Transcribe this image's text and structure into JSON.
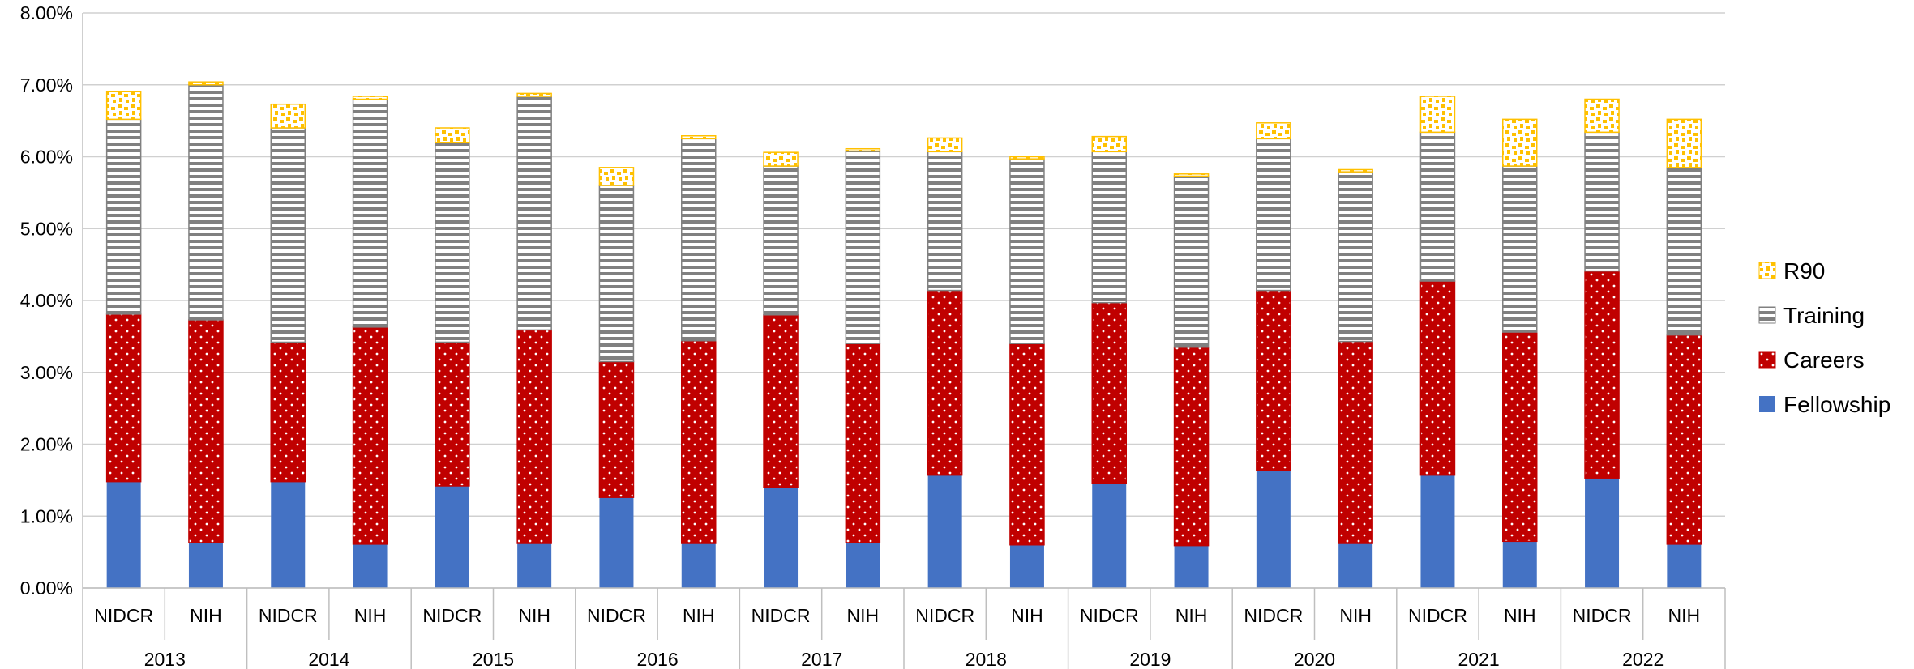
{
  "chart_data": {
    "type": "bar",
    "stacked": true,
    "title": "",
    "xlabel": "",
    "ylabel": "",
    "ylim": [
      0,
      8
    ],
    "y_ticks": [
      "0.00%",
      "1.00%",
      "2.00%",
      "3.00%",
      "4.00%",
      "5.00%",
      "6.00%",
      "7.00%",
      "8.00%"
    ],
    "grid": true,
    "legend_position": "right",
    "years": [
      "2013",
      "2014",
      "2015",
      "2016",
      "2017",
      "2018",
      "2019",
      "2020",
      "2021",
      "2022"
    ],
    "groups": [
      "NIDCR",
      "NIH"
    ],
    "categories": [
      "NIDCR",
      "NIH",
      "NIDCR",
      "NIH",
      "NIDCR",
      "NIH",
      "NIDCR",
      "NIH",
      "NIDCR",
      "NIH",
      "NIDCR",
      "NIH",
      "NIDCR",
      "NIH",
      "NIDCR",
      "NIH",
      "NIDCR",
      "NIH",
      "NIDCR",
      "NIH"
    ],
    "series": [
      {
        "name": "Fellowship",
        "color": "#4472C4",
        "pattern": "solid",
        "values": [
          1.48,
          0.63,
          1.48,
          0.61,
          1.42,
          0.62,
          1.26,
          0.62,
          1.4,
          0.63,
          1.57,
          0.6,
          1.46,
          0.59,
          1.64,
          0.62,
          1.57,
          0.65,
          1.53,
          0.61
        ]
      },
      {
        "name": "Careers",
        "color": "#C00000",
        "pattern": "dots",
        "values": [
          2.33,
          3.1,
          1.94,
          3.02,
          2.0,
          2.97,
          1.89,
          2.82,
          2.4,
          2.77,
          2.57,
          2.8,
          2.51,
          2.76,
          2.5,
          2.81,
          2.7,
          2.91,
          2.88,
          2.91
        ]
      },
      {
        "name": "Training",
        "color": "#808080",
        "pattern": "horizontal-stripes",
        "values": [
          2.71,
          3.27,
          2.98,
          3.17,
          2.78,
          3.25,
          2.45,
          2.81,
          2.07,
          2.68,
          1.93,
          2.57,
          2.1,
          2.38,
          2.11,
          2.36,
          2.07,
          2.31,
          1.93,
          2.33
        ]
      },
      {
        "name": "R90",
        "color": "#FFC000",
        "pattern": "confetti",
        "values": [
          0.39,
          0.04,
          0.33,
          0.04,
          0.2,
          0.04,
          0.25,
          0.04,
          0.19,
          0.03,
          0.19,
          0.03,
          0.21,
          0.03,
          0.22,
          0.03,
          0.5,
          0.65,
          0.46,
          0.67
        ]
      }
    ],
    "legend_order": [
      "R90",
      "Training",
      "Careers",
      "Fellowship"
    ]
  }
}
